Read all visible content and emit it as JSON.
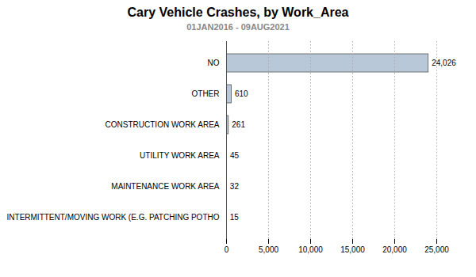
{
  "chart_data": {
    "type": "bar",
    "orientation": "horizontal",
    "title": "Cary Vehicle Crashes, by Work_Area",
    "subtitle": "01JAN2016 - 09AUG2021",
    "categories": [
      "NO",
      "OTHER",
      "CONSTRUCTION WORK AREA",
      "UTILITY WORK AREA",
      "MAINTENANCE WORK AREA",
      "INTERMITTENT/MOVING WORK (E.G. PATCHING POTHO"
    ],
    "values": [
      24026,
      610,
      261,
      45,
      32,
      15
    ],
    "value_labels": [
      "24,026",
      "610",
      "261",
      "45",
      "32",
      "15"
    ],
    "data_labels": true,
    "color": "#b8c8d8",
    "xlim": [
      0,
      25000
    ],
    "xticks": [
      0,
      {
        "value": 5000,
        "label": "5,000"
      },
      {
        "value": 10000,
        "label": "10,000"
      },
      {
        "value": 15000,
        "label": "15,000"
      },
      {
        "value": 20000,
        "label": "20,000"
      },
      {
        "value": 25000,
        "label": "25,000"
      }
    ],
    "grid": true
  }
}
